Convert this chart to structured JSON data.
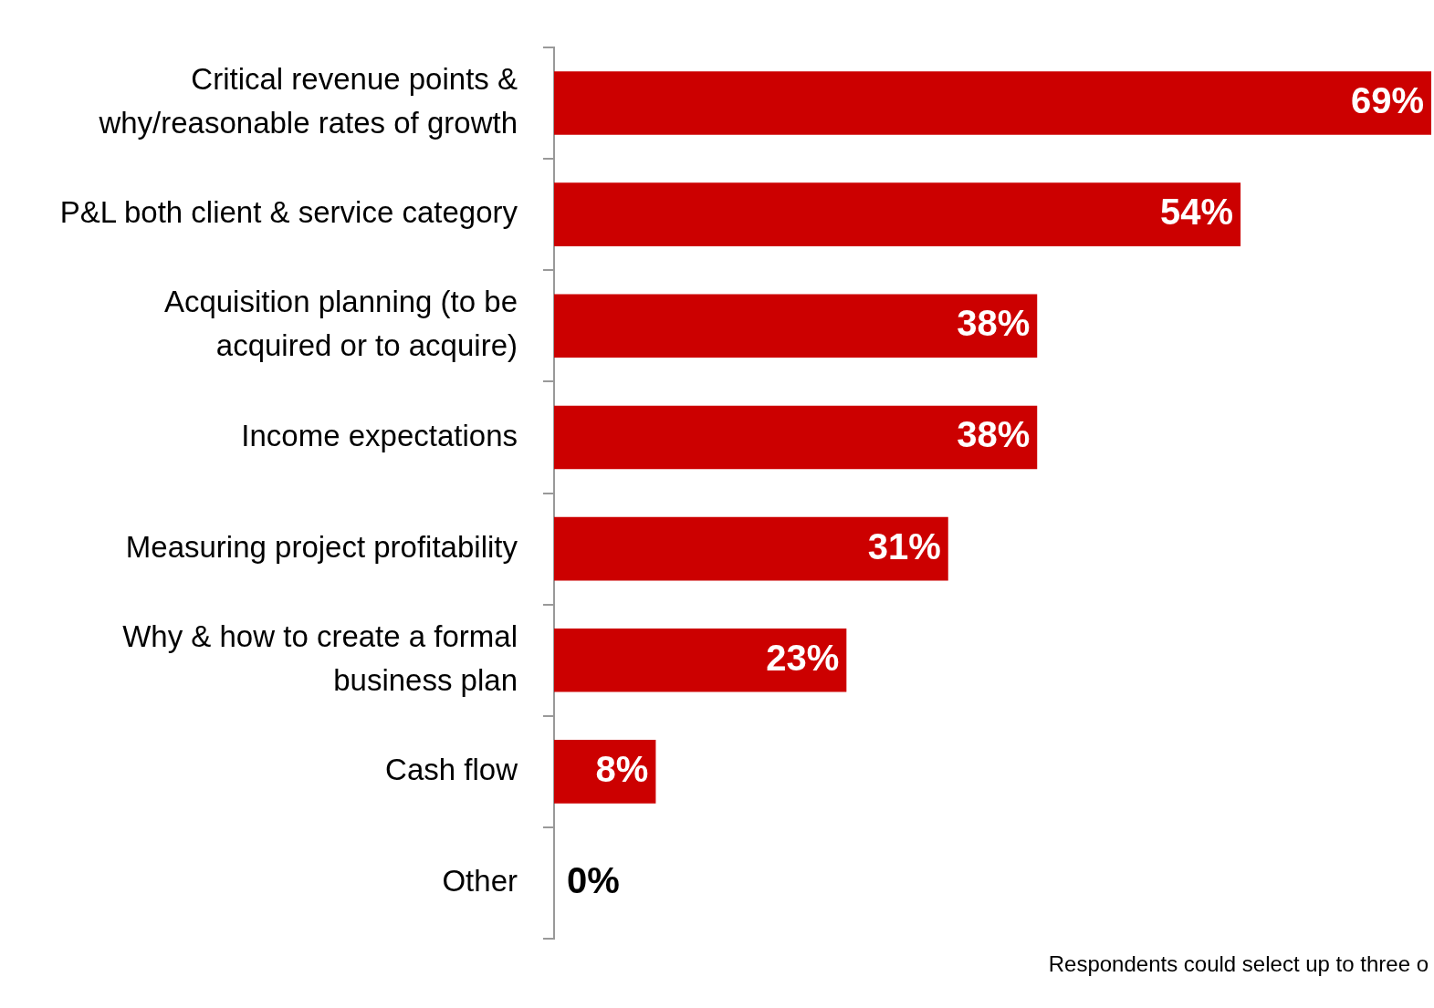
{
  "chart_data": {
    "type": "bar",
    "orientation": "horizontal",
    "categories": [
      "Critical revenue points & why/reasonable rates of growth",
      "P&L both client & service category",
      "Acquisition planning (to be acquired or to acquire)",
      "Income expectations",
      "Measuring project profitability",
      "Why & how to create a formal business plan",
      "Cash flow",
      "Other"
    ],
    "values": [
      69,
      54,
      38,
      38,
      31,
      23,
      8,
      0
    ],
    "value_labels": [
      "69%",
      "54%",
      "38%",
      "38%",
      "31%",
      "23%",
      "8%",
      "0%"
    ],
    "color": "#cc0000",
    "xlim": [
      0,
      69
    ],
    "tick_labels": "y",
    "legend": false,
    "annotations": [
      "Respondents could select up to three o"
    ]
  }
}
